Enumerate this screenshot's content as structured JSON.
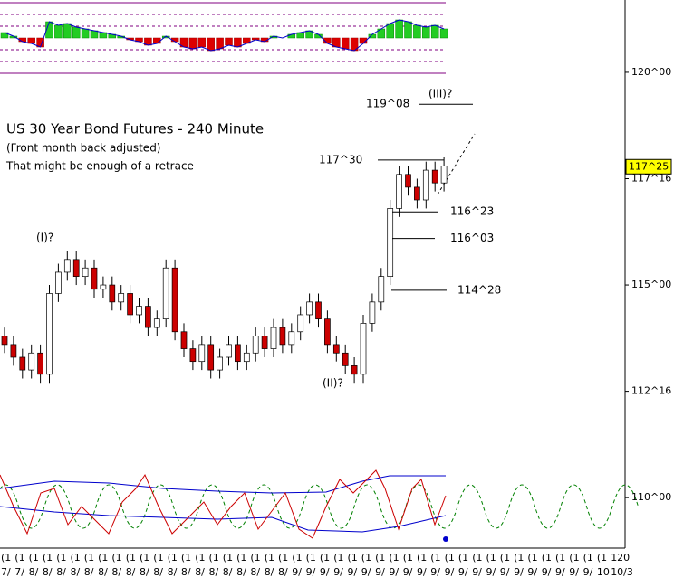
{
  "chart_data": {
    "type": "candlestick",
    "title": "US 30 Year Bond Futures - 240 Minute",
    "subtitle": [
      "(Front month back adjusted)",
      "That might be enough of a retrace"
    ],
    "ylim": [
      108.94,
      121.7
    ],
    "yticks": [
      {
        "value": 120,
        "label": "120^00"
      },
      {
        "value": 117.5,
        "label": "117^16"
      },
      {
        "value": 115,
        "label": "115^00"
      },
      {
        "value": 112.5,
        "label": "112^16"
      },
      {
        "value": 110,
        "label": "110^00"
      }
    ],
    "last_price": {
      "value": 117.78125,
      "label": "117^25"
    },
    "up_color": "#ffffff",
    "down_color": "#cc0000",
    "open": [
      113.8,
      113.6,
      113.3,
      113.0,
      113.4,
      112.9,
      114.8,
      115.3,
      115.6,
      115.2,
      115.4,
      114.9,
      115.0,
      114.6,
      114.8,
      114.3,
      114.5,
      114.0,
      114.2,
      115.4,
      113.9,
      113.5,
      113.2,
      113.6,
      113.0,
      113.3,
      113.6,
      113.2,
      113.4,
      113.8,
      113.5,
      114.0,
      113.6,
      113.9,
      114.3,
      114.6,
      114.2,
      113.6,
      113.4,
      113.1,
      112.9,
      114.1,
      114.6,
      115.2,
      116.8,
      117.6,
      117.3,
      117.0,
      117.7,
      117.4
    ],
    "high": [
      114.0,
      113.8,
      113.5,
      113.6,
      113.6,
      115.0,
      115.5,
      115.8,
      115.8,
      115.6,
      115.6,
      115.2,
      115.2,
      115.0,
      115.0,
      114.7,
      114.7,
      114.4,
      115.6,
      115.6,
      114.1,
      113.7,
      113.8,
      113.8,
      113.5,
      113.8,
      113.8,
      113.6,
      114.0,
      114.0,
      114.2,
      114.2,
      114.1,
      114.5,
      114.8,
      114.8,
      114.4,
      113.8,
      113.6,
      113.3,
      114.3,
      114.8,
      115.4,
      117.0,
      117.8,
      117.8,
      117.5,
      117.9,
      117.9,
      118.0
    ],
    "low": [
      113.4,
      113.1,
      112.8,
      112.8,
      112.7,
      112.7,
      114.6,
      115.1,
      115.0,
      115.0,
      114.7,
      114.7,
      114.4,
      114.4,
      114.1,
      114.1,
      113.8,
      113.8,
      114.0,
      113.7,
      113.3,
      113.0,
      113.0,
      112.8,
      112.8,
      113.1,
      113.0,
      113.0,
      113.2,
      113.3,
      113.3,
      113.4,
      113.4,
      113.7,
      114.1,
      114.0,
      113.4,
      113.2,
      112.9,
      112.7,
      112.7,
      113.9,
      114.4,
      115.0,
      116.6,
      117.1,
      116.8,
      116.8,
      117.2,
      117.2
    ],
    "close": [
      113.6,
      113.3,
      113.0,
      113.4,
      112.9,
      114.8,
      115.3,
      115.6,
      115.2,
      115.4,
      114.9,
      115.0,
      114.6,
      114.8,
      114.3,
      114.5,
      114.0,
      114.2,
      115.4,
      113.9,
      113.5,
      113.2,
      113.6,
      113.0,
      113.3,
      113.6,
      113.2,
      113.4,
      113.8,
      113.5,
      114.0,
      113.6,
      113.9,
      114.3,
      114.6,
      114.2,
      113.6,
      113.4,
      113.1,
      112.9,
      114.1,
      114.6,
      115.2,
      116.8,
      117.6,
      117.3,
      117.0,
      117.7,
      117.4,
      117.8
    ],
    "histogram": [
      0.3,
      0.1,
      -0.2,
      -0.3,
      -0.5,
      0.9,
      0.7,
      0.8,
      0.6,
      0.5,
      0.4,
      0.3,
      0.2,
      0.1,
      -0.1,
      -0.2,
      -0.4,
      -0.3,
      0.1,
      -0.2,
      -0.5,
      -0.6,
      -0.5,
      -0.7,
      -0.6,
      -0.4,
      -0.5,
      -0.3,
      -0.1,
      -0.2,
      0.1,
      0.0,
      0.2,
      0.3,
      0.4,
      0.2,
      -0.3,
      -0.5,
      -0.6,
      -0.7,
      -0.3,
      0.2,
      0.5,
      0.8,
      1.0,
      0.9,
      0.7,
      0.6,
      0.7,
      0.5
    ],
    "histogram_lim": [
      -1.3,
      1.3
    ],
    "levels": [
      {
        "value": 119.25,
        "label": "119^08"
      },
      {
        "value": 117.9375,
        "label": "117^30"
      },
      {
        "value": 116.71875,
        "label": "116^23"
      },
      {
        "value": 116.09375,
        "label": "116^03"
      },
      {
        "value": 114.875,
        "label": "114^28"
      }
    ],
    "wave_labels": [
      "(I)?",
      "(II)?",
      "(III)?"
    ],
    "x_axis": {
      "top": [
        "(1",
        "(1",
        "(1",
        "(1",
        "(1",
        "(1",
        "(1",
        "(1",
        "(1",
        "(1",
        "(1",
        "(1",
        "(1",
        "(1",
        "(1",
        "(1",
        "(1",
        "(1",
        "(1",
        "(1",
        "(1",
        "(1",
        "(1",
        "(1",
        "(1",
        "(1",
        "(1",
        "(1",
        "(1",
        "(1",
        "(1",
        "(1",
        "(1",
        "(1",
        "(1",
        "(1",
        "(1",
        "(1",
        "(1",
        "(1",
        "(1",
        "(1",
        "(1",
        "(1",
        "120"
      ],
      "bottom": [
        "7/",
        "7/",
        "8/",
        "8/",
        "8/",
        "8/",
        "8/",
        "8/",
        "8/",
        "8/",
        "8/",
        "8/",
        "8/",
        "8/",
        "8/",
        "8/",
        "8/",
        "8/",
        "8/",
        "8/",
        "8/",
        "9/",
        "9/",
        "9/",
        "9/",
        "9/",
        "9/",
        "9/",
        "9/",
        "9/",
        "9/",
        "9/",
        "9/",
        "9/",
        "9/",
        "9/",
        "9/",
        "9/",
        "9/",
        "9/",
        "9/",
        "9/",
        "9/",
        "10",
        "10/3"
      ]
    }
  }
}
